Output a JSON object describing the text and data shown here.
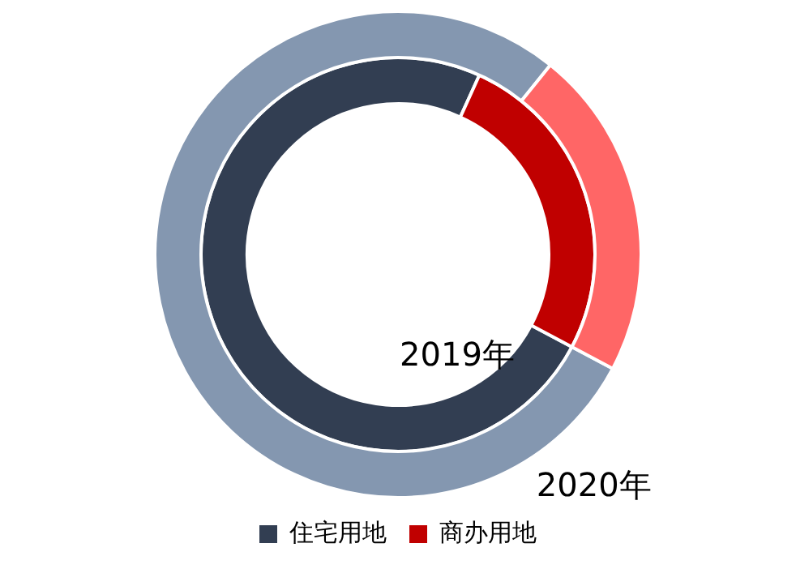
{
  "chart_data": {
    "type": "donut",
    "categories": [
      "住宅用地",
      "商办用地"
    ],
    "series": [
      {
        "name": "2019年",
        "colors": [
          "#323e52",
          "#c00000"
        ],
        "values": [
          74,
          26
        ]
      },
      {
        "name": "2020年",
        "colors": [
          "#8497b0",
          "#ff6666"
        ],
        "values": [
          78,
          22
        ]
      }
    ],
    "legend": "bottom"
  }
}
